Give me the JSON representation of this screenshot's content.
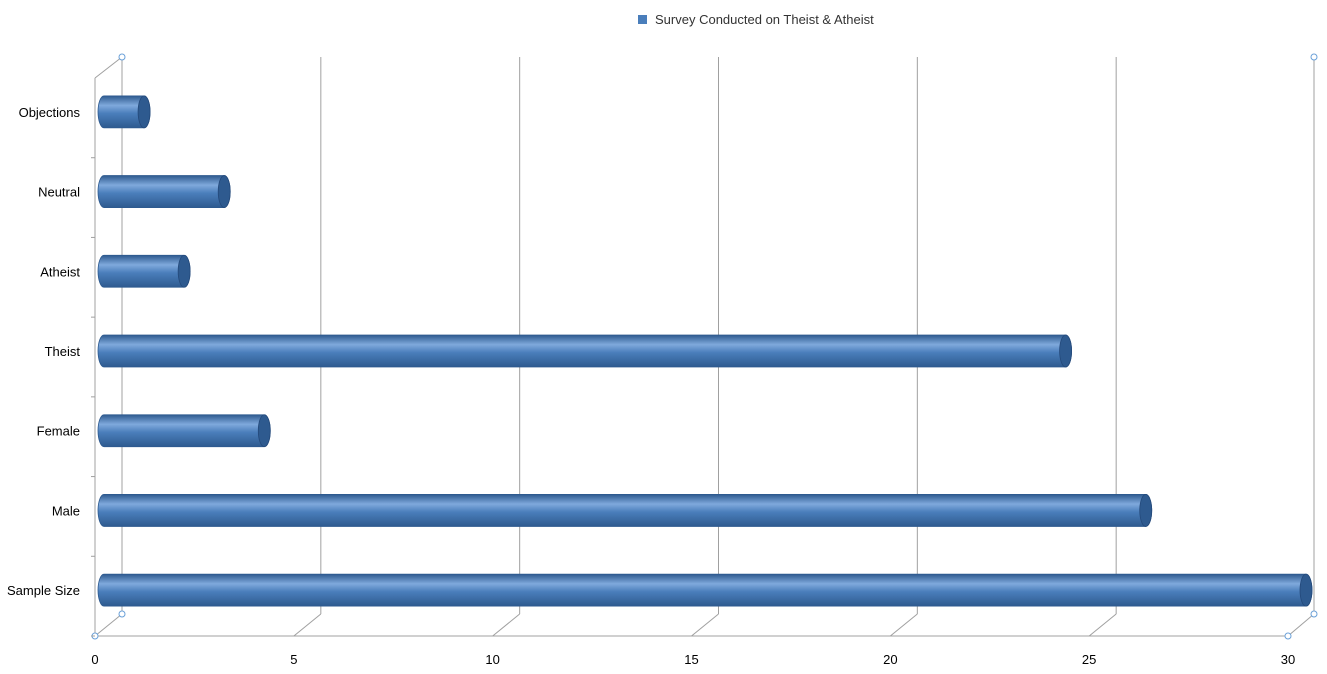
{
  "chart_data": {
    "type": "bar",
    "orientation": "horizontal",
    "style": "3d-cylinder",
    "title": "",
    "xlabel": "",
    "ylabel": "",
    "categories": [
      "Sample Size",
      "Male",
      "Female",
      "Theist",
      "Atheist",
      "Neutral",
      "Objections"
    ],
    "series": [
      {
        "name": "Survey Conducted on Theist & Atheist",
        "values": [
          30,
          26,
          4,
          24,
          2,
          3,
          1
        ]
      }
    ],
    "xlim": [
      0,
      30
    ],
    "xticks": [
      "0",
      "5",
      "10",
      "15",
      "20",
      "25",
      "30"
    ],
    "grid": true,
    "legend": "top-center"
  },
  "colors": {
    "bar": "#4a7ebb",
    "bar_light": "#7fa9dc",
    "bar_dark": "#2e5a8f",
    "grid": "#a0a0a0",
    "axis": "#a0a0a0",
    "text": "#000000"
  }
}
